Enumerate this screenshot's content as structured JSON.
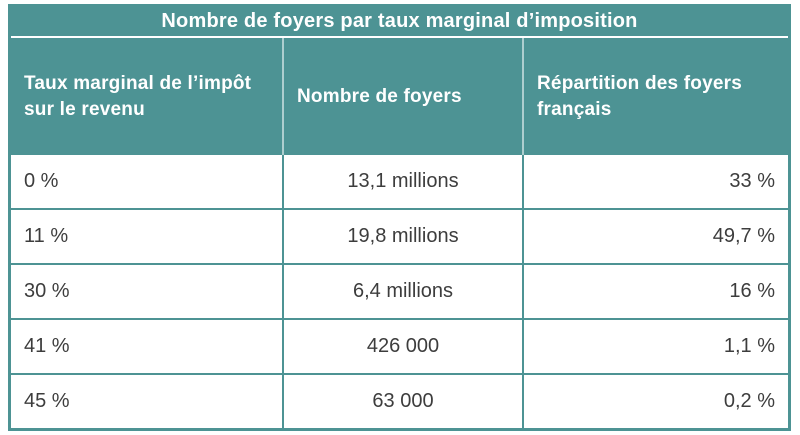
{
  "colors": {
    "accent_teal": "#4d9394",
    "header_text": "#ffffff",
    "body_text": "#3d3d3d"
  },
  "chart_data": {
    "type": "table",
    "title": "Nombre de foyers par taux marginal d’imposition",
    "columns": [
      "Taux marginal de l’impôt sur le revenu",
      "Nombre de foyers",
      "Répartition des foyers français"
    ],
    "rows": [
      [
        "0 %",
        "13,1 millions",
        "33 %"
      ],
      [
        "11 %",
        "19,8 millions",
        "49,7 %"
      ],
      [
        "30 %",
        "6,4 millions",
        "16 %"
      ],
      [
        "41 %",
        "426 000",
        "1,1 %"
      ],
      [
        "45 %",
        "63 000",
        "0,2 %"
      ]
    ],
    "layout": {
      "column_alignments": [
        "left",
        "center",
        "right"
      ],
      "title_position": "top-center",
      "header_style": "teal-band-white-bold-text"
    }
  }
}
